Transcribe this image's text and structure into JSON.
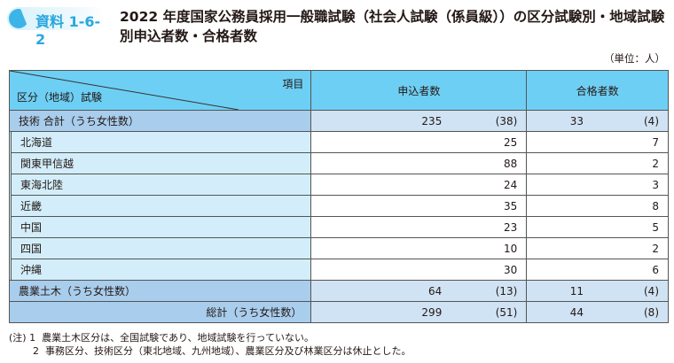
{
  "badge": "資料 1-6-2",
  "title": "2022 年度国家公務員採用一般職試験（社会人試験（係員級））の区分試験別・地域試験別申込者数・合格者数",
  "unit": "（単位：人）",
  "header": {
    "item": "項目",
    "category": "区分（地域）試験",
    "applicants": "申込者数",
    "passers": "合格者数"
  },
  "tech_total": {
    "label": "技術 合計（うち女性数）",
    "applicants": "235",
    "applicants_women": "(38)",
    "passers": "33",
    "passers_women": "(4)"
  },
  "regions": [
    {
      "label": "北海道",
      "applicants": "25",
      "passers": "7"
    },
    {
      "label": "関東甲信越",
      "applicants": "88",
      "passers": "2"
    },
    {
      "label": "東海北陸",
      "applicants": "24",
      "passers": "3"
    },
    {
      "label": "近畿",
      "applicants": "35",
      "passers": "8"
    },
    {
      "label": "中国",
      "applicants": "23",
      "passers": "5"
    },
    {
      "label": "四国",
      "applicants": "10",
      "passers": "2"
    },
    {
      "label": "沖縄",
      "applicants": "30",
      "passers": "6"
    }
  ],
  "agri": {
    "label": "農業土木（うち女性数）",
    "applicants": "64",
    "applicants_women": "(13)",
    "passers": "11",
    "passers_women": "(4)"
  },
  "total": {
    "label": "総計（うち女性数）",
    "applicants": "299",
    "applicants_women": "(51)",
    "passers": "44",
    "passers_women": "(8)"
  },
  "notes": {
    "prefix": "(注)",
    "items": [
      {
        "num": "1",
        "text": "農業土木区分は、全国試験であり、地域試験を行っていない。"
      },
      {
        "num": "2",
        "text": "事務区分、技術区分（東北地域、九州地域）、農業区分及び林業区分は休止とした。"
      }
    ]
  },
  "colors": {
    "header": "#6ecff4",
    "category_row": "#a9cdec",
    "value_cell": "#d0e3f4",
    "sub_label": "#d3eefa",
    "badge": "#2aa7df"
  }
}
